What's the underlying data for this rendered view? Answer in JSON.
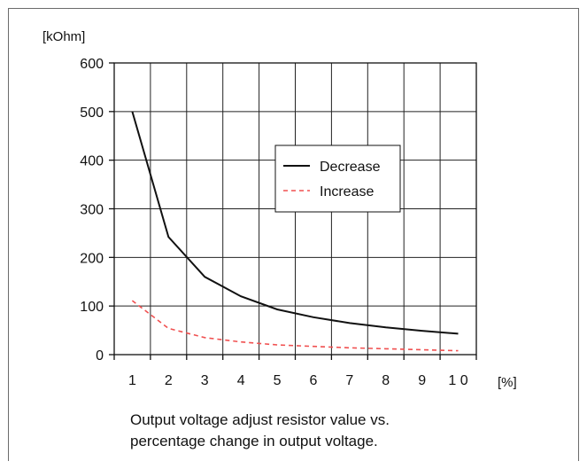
{
  "chart_data": {
    "type": "line",
    "ylabel": "[kOhm]",
    "xlabel": "[%]",
    "xlim": [
      0.5,
      10.5
    ],
    "ylim": [
      0,
      600
    ],
    "xticks": [
      1,
      2,
      3,
      4,
      5,
      6,
      7,
      8,
      9,
      10
    ],
    "xtick_labels": [
      "1",
      "2",
      "3",
      "4",
      "5",
      "6",
      "7",
      "8",
      "9",
      "1 0"
    ],
    "yticks": [
      0,
      100,
      200,
      300,
      400,
      500,
      600
    ],
    "grid": true,
    "legend_position": "center-right",
    "series": [
      {
        "name": "Decrease",
        "color": "#111111",
        "style": "solid",
        "x": [
          1,
          2,
          3,
          4,
          5,
          6,
          7,
          8,
          9,
          10
        ],
        "y": [
          500,
          242,
          160,
          120,
          93,
          77,
          65,
          56,
          49,
          43
        ]
      },
      {
        "name": "Increase",
        "color": "#f05050",
        "style": "dashed",
        "x": [
          1,
          2,
          3,
          4,
          5,
          6,
          7,
          8,
          9,
          10
        ],
        "y": [
          111,
          54,
          35,
          26,
          20,
          17,
          14,
          12,
          10,
          8
        ]
      }
    ]
  },
  "caption": {
    "line1": "Output voltage adjust resistor value vs.",
    "line2": "percentage change in output voltage."
  }
}
